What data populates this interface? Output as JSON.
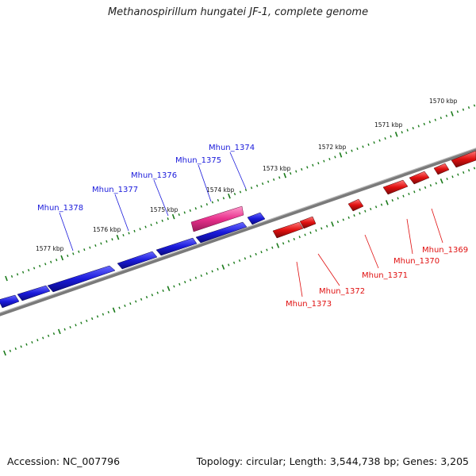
{
  "title": "Methanospirillum hungatei JF-1, complete genome",
  "footer": {
    "accession": "Accession: NC_007796",
    "summary": "Topology: circular; Length: 3,544,738 bp; Genes: 3,205"
  },
  "ruler_labels": [
    "1570 kbp",
    "1571 kbp",
    "1572 kbp",
    "1573 kbp",
    "1574 kbp",
    "1575 kbp",
    "1576 kbp",
    "1577 kbp"
  ],
  "genes_forward": [
    "Mhun_1374",
    "Mhun_1375",
    "Mhun_1376",
    "Mhun_1377",
    "Mhun_1378"
  ],
  "genes_reverse": [
    "Mhun_1369",
    "Mhun_1370",
    "Mhun_1371",
    "Mhun_1372",
    "Mhun_1373"
  ],
  "colors": {
    "forward_gene": "#1a1adb",
    "reverse_gene": "#e01010",
    "highlight_gene": "#e8308c",
    "backbone": "#808080",
    "ticks": "#1a7a1a"
  }
}
